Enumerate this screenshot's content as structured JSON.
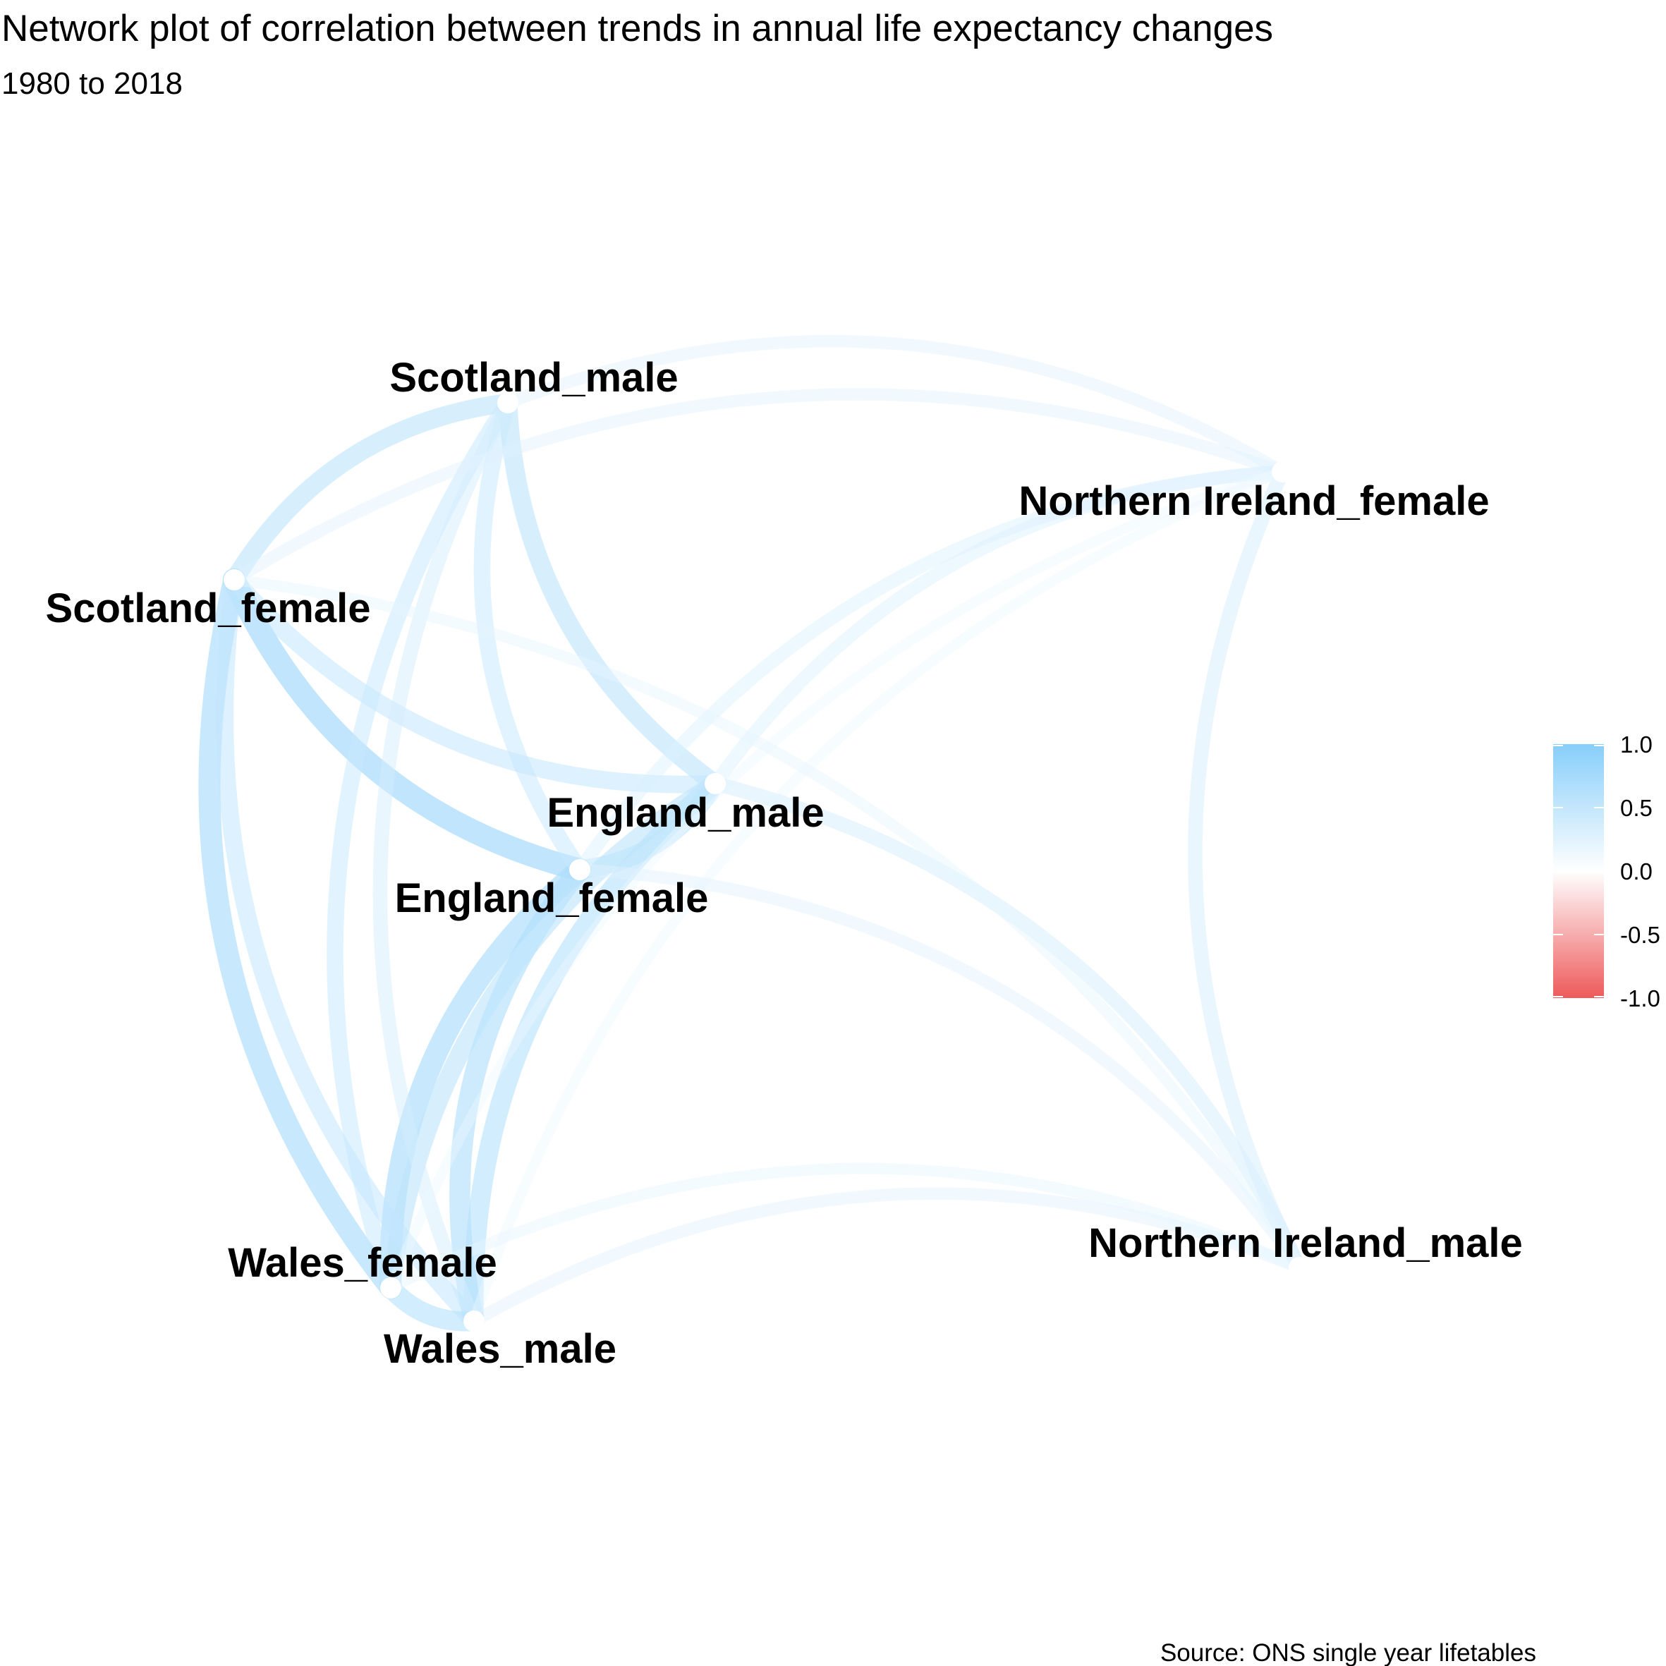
{
  "title": "Network plot of correlation between trends in annual life expectancy changes",
  "subtitle": "1980 to 2018",
  "caption": "Source: ONS single year lifetables",
  "chart_data": {
    "type": "network",
    "nodes": [
      {
        "id": "Scotland_male",
        "label": "Scotland_male"
      },
      {
        "id": "Scotland_female",
        "label": "Scotland_female"
      },
      {
        "id": "Northern Ireland_female",
        "label": "Northern Ireland_female"
      },
      {
        "id": "England_male",
        "label": "England_male"
      },
      {
        "id": "England_female",
        "label": "England_female"
      },
      {
        "id": "Wales_female",
        "label": "Wales_female"
      },
      {
        "id": "Wales_male",
        "label": "Wales_male"
      },
      {
        "id": "Northern Ireland_male",
        "label": "Northern Ireland_male"
      }
    ],
    "edges": [
      {
        "from": "Scotland_female",
        "to": "England_female",
        "r": 0.75
      },
      {
        "from": "Scotland_female",
        "to": "Wales_female",
        "r": 0.7
      },
      {
        "from": "England_female",
        "to": "Wales_female",
        "r": 0.7
      },
      {
        "from": "England_female",
        "to": "Wales_male",
        "r": 0.65
      },
      {
        "from": "England_male",
        "to": "Wales_male",
        "r": 0.6
      },
      {
        "from": "England_male",
        "to": "Wales_female",
        "r": 0.55
      },
      {
        "from": "Scotland_male",
        "to": "Scotland_female",
        "r": 0.55
      },
      {
        "from": "Scotland_male",
        "to": "England_male",
        "r": 0.55
      },
      {
        "from": "Scotland_male",
        "to": "England_female",
        "r": 0.45
      },
      {
        "from": "Scotland_female",
        "to": "England_male",
        "r": 0.5
      },
      {
        "from": "Scotland_male",
        "to": "Wales_female",
        "r": 0.45
      },
      {
        "from": "Scotland_male",
        "to": "Wales_male",
        "r": 0.35
      },
      {
        "from": "Scotland_female",
        "to": "Wales_male",
        "r": 0.5
      },
      {
        "from": "Wales_female",
        "to": "Wales_male",
        "r": 0.6
      },
      {
        "from": "England_female",
        "to": "England_male",
        "r": 0.55
      },
      {
        "from": "Northern Ireland_female",
        "to": "Northern Ireland_male",
        "r": 0.35
      },
      {
        "from": "Northern Ireland_female",
        "to": "Scotland_male",
        "r": 0.25
      },
      {
        "from": "Northern Ireland_female",
        "to": "Scotland_female",
        "r": 0.25
      },
      {
        "from": "Northern Ireland_female",
        "to": "England_male",
        "r": 0.3
      },
      {
        "from": "Northern Ireland_female",
        "to": "England_female",
        "r": 0.3
      },
      {
        "from": "Northern Ireland_female",
        "to": "Wales_female",
        "r": 0.15
      },
      {
        "from": "Northern Ireland_female",
        "to": "Wales_male",
        "r": 0.15
      },
      {
        "from": "Northern Ireland_male",
        "to": "England_male",
        "r": 0.35
      },
      {
        "from": "Northern Ireland_male",
        "to": "England_female",
        "r": 0.25
      },
      {
        "from": "Northern Ireland_male",
        "to": "Scotland_female",
        "r": 0.2
      },
      {
        "from": "Northern Ireland_male",
        "to": "Wales_male",
        "r": 0.25
      },
      {
        "from": "Northern Ireland_male",
        "to": "Wales_female",
        "r": 0.2
      }
    ],
    "legend": {
      "title": "",
      "breaks": [
        "1.0",
        "0.5",
        "0.0",
        "-0.5",
        "-1.0"
      ],
      "range": [
        -1,
        1
      ],
      "color_low": "#ee5a5a",
      "color_mid": "#ffffff",
      "color_high": "#87cefa"
    }
  }
}
